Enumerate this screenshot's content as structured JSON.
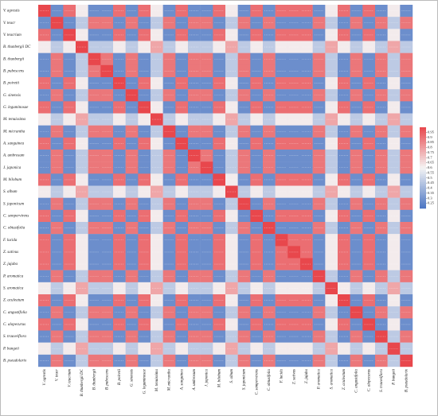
{
  "chart_data": {
    "type": "heatmap",
    "categories": [
      "V. agrestis",
      "V. teucr",
      "V. teucrium",
      "B. thunbergii DC",
      "B. thunbergii",
      "B. pubescens",
      "B. poiretii",
      "G. sinensis",
      "G. leguminosae",
      "M. tenuissima",
      "M. micrantha",
      "A. sanguinea",
      "A. umbrosum",
      "J. japonica",
      "M. bilobum",
      "S. album",
      "S. japonicum",
      "C. sempervirens",
      "C. obtusifolia",
      "F. lucida",
      "Z. sativus",
      "Z. jujuba",
      "P. aromatica",
      "S. aromatica",
      "Z. aculeatum",
      "C. angustifolia",
      "C. alopecurus",
      "S. trauveiflora",
      "P. bungeii",
      "B. pseudolarix"
    ],
    "values": [
      [
        1,
        0.28,
        0.91,
        0.62,
        0.28,
        0.28,
        0.91,
        0.28,
        0.91,
        0.62,
        0.28,
        0.91,
        0.28,
        0.28,
        0.91,
        0.62,
        0.28,
        0.91,
        0.28,
        0.91,
        0.91,
        0.91,
        0.28,
        0.62,
        0.91,
        0.28,
        0.91,
        0.28,
        0.62,
        0.28
      ],
      [
        0.28,
        1,
        0.28,
        0.47,
        0.89,
        0.89,
        0.28,
        0.89,
        0.28,
        0.47,
        0.89,
        0.28,
        0.89,
        0.89,
        0.28,
        0.47,
        0.89,
        0.28,
        0.89,
        0.28,
        0.28,
        0.28,
        0.89,
        0.47,
        0.28,
        0.89,
        0.28,
        0.89,
        0.47,
        0.89
      ],
      [
        0.91,
        0.28,
        1,
        0.62,
        0.28,
        0.28,
        0.91,
        0.28,
        0.91,
        0.62,
        0.28,
        0.91,
        0.28,
        0.28,
        0.91,
        0.62,
        0.28,
        0.91,
        0.28,
        0.91,
        0.91,
        0.91,
        0.28,
        0.62,
        0.91,
        0.28,
        0.91,
        0.28,
        0.62,
        0.28
      ],
      [
        0.62,
        0.47,
        0.62,
        1,
        0.47,
        0.47,
        0.62,
        0.47,
        0.62,
        0.78,
        0.47,
        0.62,
        0.47,
        0.47,
        0.62,
        0.78,
        0.47,
        0.62,
        0.47,
        0.62,
        0.62,
        0.62,
        0.47,
        0.78,
        0.62,
        0.47,
        0.62,
        0.47,
        0.78,
        0.47
      ],
      [
        0.28,
        0.89,
        0.28,
        0.47,
        1,
        0.89,
        0.28,
        0.89,
        0.28,
        0.47,
        0.89,
        0.28,
        0.89,
        0.89,
        0.28,
        0.47,
        0.89,
        0.28,
        0.89,
        0.28,
        0.28,
        0.28,
        0.89,
        0.47,
        0.28,
        0.89,
        0.28,
        0.89,
        0.47,
        0.89
      ],
      [
        0.28,
        0.89,
        0.28,
        0.47,
        0.89,
        1,
        0.28,
        0.89,
        0.28,
        0.47,
        0.89,
        0.28,
        0.89,
        0.89,
        0.28,
        0.47,
        0.89,
        0.28,
        0.89,
        0.28,
        0.28,
        0.28,
        0.89,
        0.47,
        0.28,
        0.89,
        0.28,
        0.89,
        0.47,
        0.89
      ],
      [
        0.91,
        0.28,
        0.91,
        0.62,
        0.28,
        0.28,
        1,
        0.28,
        0.91,
        0.62,
        0.28,
        0.91,
        0.28,
        0.28,
        0.91,
        0.62,
        0.28,
        0.91,
        0.28,
        0.91,
        0.91,
        0.91,
        0.28,
        0.62,
        0.91,
        0.28,
        0.91,
        0.28,
        0.62,
        0.28
      ],
      [
        0.28,
        0.89,
        0.28,
        0.47,
        0.89,
        0.89,
        0.28,
        1,
        0.28,
        0.47,
        0.89,
        0.28,
        0.89,
        0.89,
        0.28,
        0.47,
        0.89,
        0.28,
        0.89,
        0.28,
        0.28,
        0.28,
        0.89,
        0.47,
        0.28,
        0.89,
        0.28,
        0.89,
        0.47,
        0.89
      ],
      [
        0.91,
        0.28,
        0.91,
        0.62,
        0.28,
        0.28,
        0.91,
        0.28,
        1,
        0.62,
        0.28,
        0.91,
        0.28,
        0.28,
        0.91,
        0.62,
        0.28,
        0.91,
        0.28,
        0.91,
        0.91,
        0.91,
        0.28,
        0.62,
        0.91,
        0.28,
        0.91,
        0.28,
        0.62,
        0.28
      ],
      [
        0.62,
        0.47,
        0.62,
        0.78,
        0.47,
        0.47,
        0.62,
        0.47,
        0.62,
        1,
        0.47,
        0.62,
        0.47,
        0.47,
        0.62,
        0.78,
        0.47,
        0.62,
        0.47,
        0.62,
        0.62,
        0.62,
        0.47,
        0.78,
        0.62,
        0.47,
        0.62,
        0.47,
        0.78,
        0.47
      ],
      [
        0.28,
        0.89,
        0.28,
        0.47,
        0.89,
        0.89,
        0.28,
        0.89,
        0.28,
        0.47,
        1,
        0.28,
        0.89,
        0.89,
        0.28,
        0.47,
        0.89,
        0.28,
        0.89,
        0.28,
        0.28,
        0.28,
        0.89,
        0.47,
        0.28,
        0.89,
        0.28,
        0.89,
        0.47,
        0.89
      ],
      [
        0.91,
        0.28,
        0.91,
        0.62,
        0.28,
        0.28,
        0.91,
        0.28,
        0.91,
        0.62,
        0.28,
        1,
        0.28,
        0.28,
        0.91,
        0.62,
        0.28,
        0.91,
        0.28,
        0.91,
        0.91,
        0.91,
        0.28,
        0.62,
        0.91,
        0.28,
        0.91,
        0.28,
        0.62,
        0.28
      ],
      [
        0.28,
        0.89,
        0.28,
        0.47,
        0.89,
        0.89,
        0.28,
        0.89,
        0.28,
        0.47,
        0.89,
        0.28,
        1,
        0.89,
        0.28,
        0.47,
        0.89,
        0.28,
        0.89,
        0.28,
        0.28,
        0.28,
        0.89,
        0.47,
        0.28,
        0.89,
        0.28,
        0.89,
        0.47,
        0.89
      ],
      [
        0.28,
        0.89,
        0.28,
        0.47,
        0.89,
        0.89,
        0.28,
        0.89,
        0.28,
        0.47,
        0.89,
        0.28,
        0.89,
        1,
        0.28,
        0.47,
        0.89,
        0.28,
        0.89,
        0.28,
        0.28,
        0.28,
        0.89,
        0.47,
        0.28,
        0.89,
        0.28,
        0.89,
        0.47,
        0.89
      ],
      [
        0.91,
        0.28,
        0.91,
        0.62,
        0.28,
        0.28,
        0.91,
        0.28,
        0.91,
        0.62,
        0.28,
        0.91,
        0.28,
        0.28,
        1,
        0.62,
        0.28,
        0.91,
        0.28,
        0.91,
        0.91,
        0.91,
        0.28,
        0.62,
        0.91,
        0.28,
        0.91,
        0.28,
        0.62,
        0.28
      ],
      [
        0.62,
        0.47,
        0.62,
        0.78,
        0.47,
        0.47,
        0.62,
        0.47,
        0.62,
        0.78,
        0.47,
        0.62,
        0.47,
        0.47,
        0.62,
        1,
        0.47,
        0.62,
        0.47,
        0.62,
        0.62,
        0.62,
        0.47,
        0.78,
        0.62,
        0.47,
        0.62,
        0.47,
        0.78,
        0.47
      ],
      [
        0.28,
        0.89,
        0.28,
        0.47,
        0.89,
        0.89,
        0.28,
        0.89,
        0.28,
        0.47,
        0.89,
        0.28,
        0.89,
        0.89,
        0.28,
        0.47,
        1,
        0.28,
        0.89,
        0.28,
        0.28,
        0.28,
        0.89,
        0.47,
        0.28,
        0.89,
        0.28,
        0.89,
        0.47,
        0.89
      ],
      [
        0.91,
        0.28,
        0.91,
        0.62,
        0.28,
        0.28,
        0.91,
        0.28,
        0.91,
        0.62,
        0.28,
        0.91,
        0.28,
        0.28,
        0.91,
        0.62,
        0.28,
        1,
        0.28,
        0.91,
        0.91,
        0.91,
        0.28,
        0.62,
        0.91,
        0.28,
        0.91,
        0.28,
        0.62,
        0.28
      ],
      [
        0.28,
        0.89,
        0.28,
        0.47,
        0.89,
        0.89,
        0.28,
        0.89,
        0.28,
        0.47,
        0.89,
        0.28,
        0.89,
        0.89,
        0.28,
        0.47,
        0.89,
        0.28,
        1,
        0.28,
        0.28,
        0.28,
        0.89,
        0.47,
        0.28,
        0.89,
        0.28,
        0.89,
        0.47,
        0.89
      ],
      [
        0.91,
        0.28,
        0.91,
        0.62,
        0.28,
        0.28,
        0.91,
        0.28,
        0.91,
        0.62,
        0.28,
        0.91,
        0.28,
        0.28,
        0.91,
        0.62,
        0.28,
        0.91,
        0.28,
        1,
        0.91,
        0.91,
        0.28,
        0.62,
        0.91,
        0.28,
        0.91,
        0.28,
        0.62,
        0.28
      ],
      [
        0.91,
        0.28,
        0.91,
        0.62,
        0.28,
        0.28,
        0.91,
        0.28,
        0.91,
        0.62,
        0.28,
        0.91,
        0.28,
        0.28,
        0.91,
        0.62,
        0.28,
        0.91,
        0.28,
        0.91,
        1,
        0.91,
        0.28,
        0.62,
        0.91,
        0.28,
        0.91,
        0.28,
        0.62,
        0.28
      ],
      [
        0.91,
        0.28,
        0.91,
        0.62,
        0.28,
        0.28,
        0.91,
        0.28,
        0.91,
        0.62,
        0.28,
        0.91,
        0.28,
        0.28,
        0.91,
        0.62,
        0.28,
        0.91,
        0.28,
        0.91,
        0.91,
        1,
        0.28,
        0.62,
        0.91,
        0.28,
        0.91,
        0.28,
        0.62,
        0.28
      ],
      [
        0.28,
        0.89,
        0.28,
        0.47,
        0.89,
        0.89,
        0.28,
        0.89,
        0.28,
        0.47,
        0.89,
        0.28,
        0.89,
        0.89,
        0.28,
        0.47,
        0.89,
        0.28,
        0.89,
        0.28,
        0.28,
        0.28,
        1,
        0.47,
        0.28,
        0.89,
        0.28,
        0.89,
        0.47,
        0.89
      ],
      [
        0.62,
        0.47,
        0.62,
        0.78,
        0.47,
        0.47,
        0.62,
        0.47,
        0.62,
        0.78,
        0.47,
        0.62,
        0.47,
        0.47,
        0.62,
        0.78,
        0.47,
        0.62,
        0.47,
        0.62,
        0.62,
        0.62,
        0.47,
        1,
        0.62,
        0.47,
        0.62,
        0.47,
        0.78,
        0.47
      ],
      [
        0.91,
        0.28,
        0.91,
        0.62,
        0.28,
        0.28,
        0.91,
        0.28,
        0.91,
        0.62,
        0.28,
        0.91,
        0.28,
        0.28,
        0.91,
        0.62,
        0.28,
        0.91,
        0.28,
        0.91,
        0.91,
        0.91,
        0.28,
        0.62,
        1,
        0.28,
        0.91,
        0.28,
        0.62,
        0.28
      ],
      [
        0.28,
        0.89,
        0.28,
        0.47,
        0.89,
        0.89,
        0.28,
        0.89,
        0.28,
        0.47,
        0.89,
        0.28,
        0.89,
        0.89,
        0.28,
        0.47,
        0.89,
        0.28,
        0.89,
        0.28,
        0.28,
        0.28,
        0.89,
        0.47,
        0.28,
        1,
        0.28,
        0.89,
        0.47,
        0.89
      ],
      [
        0.91,
        0.28,
        0.91,
        0.62,
        0.28,
        0.28,
        0.91,
        0.28,
        0.91,
        0.62,
        0.28,
        0.91,
        0.28,
        0.28,
        0.91,
        0.62,
        0.28,
        0.91,
        0.28,
        0.91,
        0.91,
        0.91,
        0.28,
        0.62,
        0.91,
        0.28,
        1,
        0.28,
        0.62,
        0.28
      ],
      [
        0.28,
        0.89,
        0.28,
        0.47,
        0.89,
        0.89,
        0.28,
        0.89,
        0.28,
        0.47,
        0.89,
        0.28,
        0.89,
        0.89,
        0.28,
        0.47,
        0.89,
        0.28,
        0.89,
        0.28,
        0.28,
        0.28,
        0.89,
        0.47,
        0.28,
        0.89,
        0.28,
        1,
        0.47,
        0.89
      ],
      [
        0.62,
        0.47,
        0.62,
        0.78,
        0.47,
        0.47,
        0.62,
        0.47,
        0.62,
        0.78,
        0.47,
        0.62,
        0.47,
        0.47,
        0.62,
        0.78,
        0.47,
        0.62,
        0.47,
        0.62,
        0.62,
        0.62,
        0.47,
        0.78,
        0.62,
        0.47,
        0.62,
        0.47,
        1,
        0.47
      ],
      [
        0.28,
        0.89,
        0.28,
        0.47,
        0.89,
        0.89,
        0.28,
        0.89,
        0.28,
        0.47,
        0.89,
        0.28,
        0.89,
        0.89,
        0.28,
        0.47,
        0.89,
        0.28,
        0.89,
        0.28,
        0.28,
        0.28,
        0.89,
        0.47,
        0.28,
        0.89,
        0.28,
        0.89,
        0.47,
        1
      ]
    ],
    "clim": [
      0.2,
      1
    ],
    "colorbar_ticks": [
      0.95,
      0.9,
      0.85,
      0.8,
      0.75,
      0.7,
      0.65,
      0.6,
      0.55,
      0.5,
      0.45,
      0.4,
      0.35,
      0.3,
      0.25
    ],
    "colors": {
      "low": "#4a74c2",
      "mid": "#f4f4f4",
      "high": "#e8474c"
    }
  }
}
